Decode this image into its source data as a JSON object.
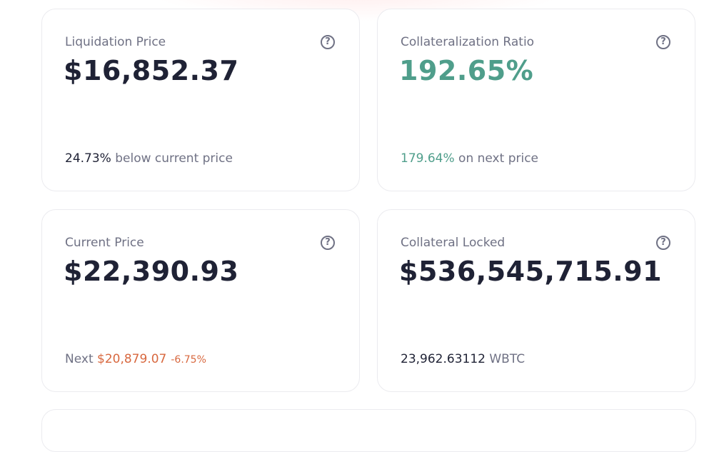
{
  "cards": [
    {
      "label": "Liquidation Price",
      "value": "$16,852.37",
      "footer": {
        "amount": "24.73%",
        "text": "below current price"
      }
    },
    {
      "label": "Collateralization Ratio",
      "value": "192.65%",
      "footer": {
        "amount": "179.64%",
        "text": "on next price"
      }
    },
    {
      "label": "Current Price",
      "value": "$22,390.93",
      "footer": {
        "prefix": "Next",
        "amount": "$20,879.07",
        "change": "-6.75%"
      }
    },
    {
      "label": "Collateral Locked",
      "value": "$536,545,715.91",
      "footer": {
        "amount": "23,962.63112",
        "text": "WBTC"
      }
    }
  ]
}
